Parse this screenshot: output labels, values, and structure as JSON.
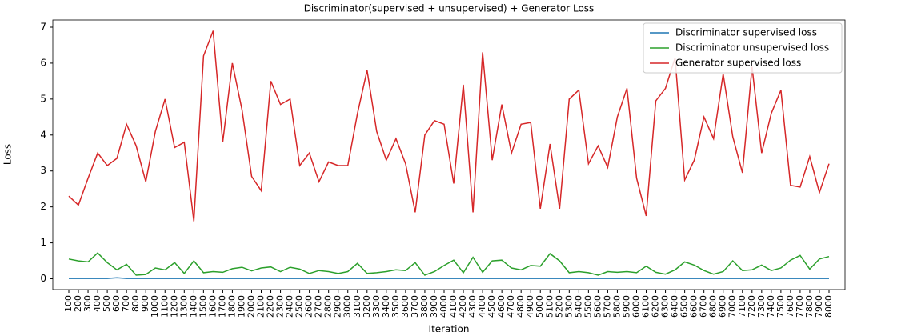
{
  "chart_data": {
    "type": "line",
    "title": "Discriminator(supervised + unsupervised) + Generator Loss",
    "x_label": "Iteration",
    "y_label": "Loss",
    "categories": [
      "100",
      "200",
      "300",
      "400",
      "500",
      "600",
      "700",
      "800",
      "900",
      "1000",
      "1100",
      "1200",
      "1300",
      "1400",
      "1500",
      "1600",
      "1700",
      "1800",
      "1900",
      "2000",
      "2100",
      "2200",
      "2300",
      "2400",
      "2500",
      "2600",
      "2700",
      "2800",
      "2900",
      "3000",
      "3100",
      "3200",
      "3300",
      "3400",
      "3500",
      "3600",
      "3700",
      "3800",
      "3900",
      "4000",
      "4100",
      "4200",
      "4300",
      "4400",
      "4500",
      "4600",
      "4700",
      "4800",
      "4900",
      "5000",
      "5100",
      "5200",
      "5300",
      "5400",
      "5500",
      "5600",
      "5700",
      "5800",
      "5900",
      "6000",
      "6100",
      "6200",
      "6300",
      "6400",
      "6500",
      "6600",
      "6700",
      "6800",
      "6900",
      "7000",
      "7100",
      "7200",
      "7300",
      "7400",
      "7500",
      "7600",
      "7700",
      "7800",
      "7900",
      "8000"
    ],
    "series": [
      {
        "name": "Discriminator supervised loss",
        "color": "#1f77b4",
        "values": [
          0.01,
          0.01,
          0.01,
          0.01,
          0.01,
          0.03,
          0.01,
          0.01,
          0.01,
          0.01,
          0.01,
          0.01,
          0.01,
          0.01,
          0.01,
          0.01,
          0.01,
          0.01,
          0.01,
          0.01,
          0.01,
          0.01,
          0.01,
          0.01,
          0.01,
          0.01,
          0.01,
          0.01,
          0.01,
          0.01,
          0.01,
          0.01,
          0.01,
          0.01,
          0.01,
          0.01,
          0.01,
          0.01,
          0.01,
          0.01,
          0.01,
          0.01,
          0.01,
          0.01,
          0.01,
          0.01,
          0.01,
          0.01,
          0.01,
          0.01,
          0.01,
          0.01,
          0.01,
          0.01,
          0.01,
          0.01,
          0.01,
          0.01,
          0.01,
          0.01,
          0.01,
          0.01,
          0.01,
          0.01,
          0.01,
          0.01,
          0.01,
          0.01,
          0.01,
          0.01,
          0.01,
          0.01,
          0.01,
          0.01,
          0.01,
          0.01,
          0.01,
          0.01,
          0.01,
          0.01
        ]
      },
      {
        "name": "Discriminator unsupervised loss",
        "color": "#2ca02c",
        "values": [
          0.55,
          0.5,
          0.47,
          0.72,
          0.45,
          0.25,
          0.4,
          0.1,
          0.12,
          0.3,
          0.25,
          0.45,
          0.15,
          0.5,
          0.17,
          0.2,
          0.18,
          0.28,
          0.32,
          0.22,
          0.3,
          0.33,
          0.2,
          0.32,
          0.27,
          0.15,
          0.23,
          0.2,
          0.15,
          0.2,
          0.43,
          0.15,
          0.17,
          0.2,
          0.25,
          0.23,
          0.45,
          0.1,
          0.2,
          0.37,
          0.52,
          0.17,
          0.6,
          0.18,
          0.5,
          0.52,
          0.3,
          0.25,
          0.37,
          0.35,
          0.7,
          0.5,
          0.17,
          0.2,
          0.17,
          0.1,
          0.2,
          0.18,
          0.2,
          0.17,
          0.35,
          0.18,
          0.13,
          0.25,
          0.47,
          0.38,
          0.23,
          0.13,
          0.2,
          0.5,
          0.23,
          0.25,
          0.38,
          0.23,
          0.3,
          0.52,
          0.65,
          0.27,
          0.55,
          0.62
        ]
      },
      {
        "name": "Generator supervised loss",
        "color": "#d62728",
        "values": [
          2.3,
          2.05,
          2.8,
          3.5,
          3.15,
          3.35,
          4.3,
          3.7,
          2.7,
          4.1,
          5.0,
          3.65,
          3.8,
          1.6,
          6.2,
          6.9,
          3.8,
          6.0,
          4.7,
          2.85,
          2.45,
          5.5,
          4.85,
          5.0,
          3.15,
          3.5,
          2.7,
          3.25,
          3.15,
          3.15,
          4.6,
          5.8,
          4.1,
          3.3,
          3.9,
          3.2,
          1.85,
          4.0,
          4.4,
          4.3,
          2.65,
          5.4,
          1.85,
          6.3,
          3.3,
          4.85,
          3.5,
          4.3,
          4.35,
          1.95,
          3.75,
          1.95,
          5.0,
          5.25,
          3.2,
          3.7,
          3.1,
          4.5,
          5.3,
          2.8,
          1.75,
          4.95,
          5.3,
          6.15,
          2.75,
          3.3,
          4.5,
          3.9,
          5.7,
          3.95,
          2.95,
          5.9,
          3.5,
          4.6,
          5.25,
          2.6,
          2.55,
          3.4,
          2.4,
          3.2
        ]
      }
    ],
    "ylim": [
      -0.3,
      7.2
    ],
    "yticks": [
      0,
      1,
      2,
      3,
      4,
      5,
      6,
      7
    ],
    "legend": "upper right"
  }
}
